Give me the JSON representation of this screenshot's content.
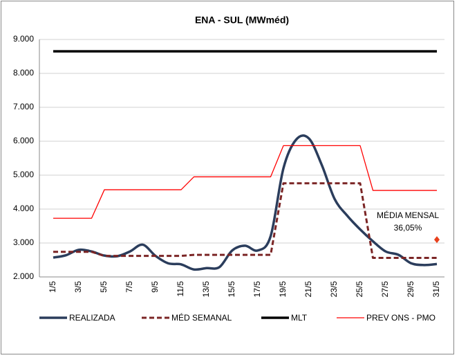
{
  "chart_data": {
    "type": "line",
    "title": "ENA - SUL (MWméd)",
    "categories": [
      "1/5",
      null,
      "3/5",
      null,
      "5/5",
      null,
      "7/5",
      null,
      "9/5",
      null,
      "11/5",
      null,
      "13/5",
      null,
      "15/5",
      null,
      "17/5",
      null,
      "19/5",
      null,
      "21/5",
      null,
      "23/5",
      null,
      "25/5",
      null,
      "27/5",
      null,
      "29/5",
      null,
      "31/5"
    ],
    "series": [
      {
        "name": "REALIZADA",
        "color": "#2b3d5c",
        "style": "smooth",
        "values": [
          2570,
          2640,
          2800,
          2750,
          2630,
          2610,
          2750,
          2950,
          2620,
          2400,
          2370,
          2220,
          2260,
          2290,
          2780,
          2920,
          2780,
          3200,
          5200,
          6050,
          6080,
          5300,
          4300,
          3800,
          3400,
          3050,
          2750,
          2650,
          2400,
          2350,
          2380
        ]
      },
      {
        "name": "MÉD SEMANAL",
        "color": "#7b2525",
        "style": "dashed",
        "values": [
          2740,
          2740,
          2740,
          2740,
          2620,
          2620,
          2620,
          2620,
          2620,
          2620,
          2620,
          2650,
          2650,
          2650,
          2650,
          2650,
          2650,
          2650,
          4760,
          4760,
          4760,
          4760,
          4760,
          4760,
          4760,
          2560,
          2560,
          2560,
          2560,
          2560,
          2560
        ]
      },
      {
        "name": "MLT",
        "color": "#000000",
        "style": "thick",
        "values": [
          8650,
          8650,
          8650,
          8650,
          8650,
          8650,
          8650,
          8650,
          8650,
          8650,
          8650,
          8650,
          8650,
          8650,
          8650,
          8650,
          8650,
          8650,
          8650,
          8650,
          8650,
          8650,
          8650,
          8650,
          8650,
          8650,
          8650,
          8650,
          8650,
          8650,
          8650
        ]
      },
      {
        "name": "PREV ONS - PMO",
        "color": "#ff0000",
        "style": "thin",
        "values": [
          3730,
          3730,
          3730,
          3730,
          4570,
          4570,
          4570,
          4570,
          4570,
          4570,
          4570,
          4950,
          4950,
          4950,
          4950,
          4950,
          4950,
          4950,
          5870,
          5870,
          5870,
          5870,
          5870,
          5870,
          5870,
          4550,
          4550,
          4550,
          4550,
          4550,
          4550
        ]
      }
    ],
    "annotation": {
      "lines": [
        "MÉDIA MENSAL",
        "36,05%"
      ],
      "value": 3100,
      "color": "#e8401c"
    },
    "ylim": [
      2000,
      9000
    ],
    "yticks": [
      {
        "value": 2000,
        "label": "2.000"
      },
      {
        "value": 3000,
        "label": "3.000"
      },
      {
        "value": 4000,
        "label": "4.000"
      },
      {
        "value": 5000,
        "label": "5.000"
      },
      {
        "value": 6000,
        "label": "6.000"
      },
      {
        "value": 7000,
        "label": "7.000"
      },
      {
        "value": 8000,
        "label": "8.000"
      },
      {
        "value": 9000,
        "label": "9.000"
      }
    ],
    "grid": true
  }
}
